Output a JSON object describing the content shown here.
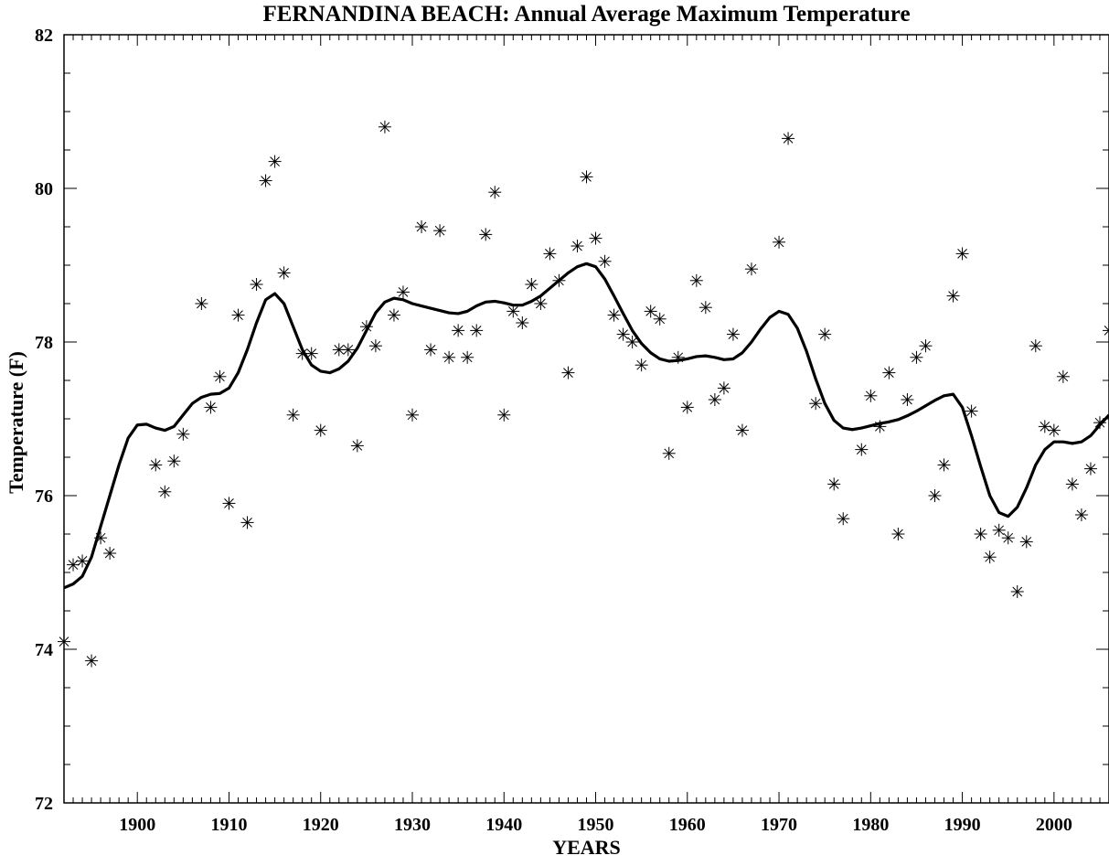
{
  "chart_data": {
    "type": "scatter",
    "title": "FERNANDINA BEACH: Annual Average Maximum Temperature",
    "xlabel": "YEARS",
    "ylabel": "Temperature (F)",
    "xlim": [
      1892,
      2006
    ],
    "ylim": [
      72,
      82
    ],
    "x_ticks": [
      "1900",
      "1910",
      "1920",
      "1930",
      "1940",
      "1950",
      "1960",
      "1970",
      "1980",
      "1990",
      "2000"
    ],
    "y_ticks": [
      "72",
      "74",
      "76",
      "78",
      "80",
      "82"
    ],
    "grid": false,
    "legend": "none",
    "series": [
      {
        "kind": "scatter",
        "marker": "asterisk",
        "color": "#000000",
        "points": [
          [
            1892,
            74.1
          ],
          [
            1893,
            75.1
          ],
          [
            1894,
            75.15
          ],
          [
            1895,
            73.85
          ],
          [
            1896,
            75.45
          ],
          [
            1897,
            75.25
          ],
          [
            1902,
            76.4
          ],
          [
            1903,
            76.05
          ],
          [
            1904,
            76.45
          ],
          [
            1905,
            76.8
          ],
          [
            1907,
            78.5
          ],
          [
            1908,
            77.15
          ],
          [
            1909,
            77.55
          ],
          [
            1910,
            75.9
          ],
          [
            1911,
            78.35
          ],
          [
            1912,
            75.65
          ],
          [
            1913,
            78.75
          ],
          [
            1914,
            80.1
          ],
          [
            1915,
            80.35
          ],
          [
            1916,
            78.9
          ],
          [
            1917,
            77.05
          ],
          [
            1918,
            77.85
          ],
          [
            1919,
            77.85
          ],
          [
            1920,
            76.85
          ],
          [
            1922,
            77.9
          ],
          [
            1923,
            77.9
          ],
          [
            1924,
            76.65
          ],
          [
            1925,
            78.2
          ],
          [
            1926,
            77.95
          ],
          [
            1927,
            80.8
          ],
          [
            1928,
            78.35
          ],
          [
            1929,
            78.65
          ],
          [
            1930,
            77.05
          ],
          [
            1931,
            79.5
          ],
          [
            1932,
            77.9
          ],
          [
            1933,
            79.45
          ],
          [
            1934,
            77.8
          ],
          [
            1935,
            78.15
          ],
          [
            1936,
            77.8
          ],
          [
            1937,
            78.15
          ],
          [
            1938,
            79.4
          ],
          [
            1939,
            79.95
          ],
          [
            1940,
            77.05
          ],
          [
            1941,
            78.4
          ],
          [
            1942,
            78.25
          ],
          [
            1943,
            78.75
          ],
          [
            1944,
            78.5
          ],
          [
            1945,
            79.15
          ],
          [
            1946,
            78.8
          ],
          [
            1947,
            77.6
          ],
          [
            1948,
            79.25
          ],
          [
            1949,
            80.15
          ],
          [
            1950,
            79.35
          ],
          [
            1951,
            79.05
          ],
          [
            1952,
            78.35
          ],
          [
            1953,
            78.1
          ],
          [
            1954,
            78.0
          ],
          [
            1955,
            77.7
          ],
          [
            1956,
            78.4
          ],
          [
            1957,
            78.3
          ],
          [
            1958,
            76.55
          ],
          [
            1959,
            77.8
          ],
          [
            1960,
            77.15
          ],
          [
            1961,
            78.8
          ],
          [
            1962,
            78.45
          ],
          [
            1963,
            77.25
          ],
          [
            1964,
            77.4
          ],
          [
            1965,
            78.1
          ],
          [
            1966,
            76.85
          ],
          [
            1967,
            78.95
          ],
          [
            1970,
            79.3
          ],
          [
            1971,
            80.65
          ],
          [
            1974,
            77.2
          ],
          [
            1975,
            78.1
          ],
          [
            1976,
            76.15
          ],
          [
            1977,
            75.7
          ],
          [
            1979,
            76.6
          ],
          [
            1980,
            77.3
          ],
          [
            1981,
            76.9
          ],
          [
            1982,
            77.6
          ],
          [
            1983,
            75.5
          ],
          [
            1984,
            77.25
          ],
          [
            1985,
            77.8
          ],
          [
            1986,
            77.95
          ],
          [
            1987,
            76.0
          ],
          [
            1988,
            76.4
          ],
          [
            1989,
            78.6
          ],
          [
            1990,
            79.15
          ],
          [
            1991,
            77.1
          ],
          [
            1992,
            75.5
          ],
          [
            1993,
            75.2
          ],
          [
            1994,
            75.55
          ],
          [
            1995,
            75.45
          ],
          [
            1996,
            74.75
          ],
          [
            1997,
            75.4
          ],
          [
            1998,
            77.95
          ],
          [
            1999,
            76.9
          ],
          [
            2000,
            76.85
          ],
          [
            2001,
            77.55
          ],
          [
            2002,
            76.15
          ],
          [
            2003,
            75.75
          ],
          [
            2004,
            76.35
          ],
          [
            2005,
            76.95
          ],
          [
            2006,
            78.15
          ]
        ]
      },
      {
        "kind": "line",
        "color": "#000000",
        "points": [
          [
            1892,
            74.8
          ],
          [
            1893,
            74.85
          ],
          [
            1894,
            74.95
          ],
          [
            1895,
            75.2
          ],
          [
            1896,
            75.6
          ],
          [
            1897,
            76.0
          ],
          [
            1898,
            76.4
          ],
          [
            1899,
            76.75
          ],
          [
            1900,
            76.92
          ],
          [
            1901,
            76.93
          ],
          [
            1902,
            76.88
          ],
          [
            1903,
            76.85
          ],
          [
            1904,
            76.9
          ],
          [
            1905,
            77.05
          ],
          [
            1906,
            77.2
          ],
          [
            1907,
            77.28
          ],
          [
            1908,
            77.32
          ],
          [
            1909,
            77.33
          ],
          [
            1910,
            77.4
          ],
          [
            1911,
            77.6
          ],
          [
            1912,
            77.9
          ],
          [
            1913,
            78.25
          ],
          [
            1914,
            78.55
          ],
          [
            1915,
            78.63
          ],
          [
            1916,
            78.5
          ],
          [
            1917,
            78.2
          ],
          [
            1918,
            77.9
          ],
          [
            1919,
            77.7
          ],
          [
            1920,
            77.62
          ],
          [
            1921,
            77.6
          ],
          [
            1922,
            77.65
          ],
          [
            1923,
            77.75
          ],
          [
            1924,
            77.92
          ],
          [
            1925,
            78.15
          ],
          [
            1926,
            78.38
          ],
          [
            1927,
            78.52
          ],
          [
            1928,
            78.57
          ],
          [
            1929,
            78.55
          ],
          [
            1930,
            78.5
          ],
          [
            1931,
            78.47
          ],
          [
            1932,
            78.44
          ],
          [
            1933,
            78.41
          ],
          [
            1934,
            78.38
          ],
          [
            1935,
            78.37
          ],
          [
            1936,
            78.4
          ],
          [
            1937,
            78.47
          ],
          [
            1938,
            78.52
          ],
          [
            1939,
            78.53
          ],
          [
            1940,
            78.51
          ],
          [
            1941,
            78.48
          ],
          [
            1942,
            78.48
          ],
          [
            1943,
            78.53
          ],
          [
            1944,
            78.6
          ],
          [
            1945,
            78.7
          ],
          [
            1946,
            78.8
          ],
          [
            1947,
            78.9
          ],
          [
            1948,
            78.98
          ],
          [
            1949,
            79.02
          ],
          [
            1950,
            78.98
          ],
          [
            1951,
            78.82
          ],
          [
            1952,
            78.6
          ],
          [
            1953,
            78.37
          ],
          [
            1954,
            78.15
          ],
          [
            1955,
            77.98
          ],
          [
            1956,
            77.86
          ],
          [
            1957,
            77.78
          ],
          [
            1958,
            77.75
          ],
          [
            1959,
            77.76
          ],
          [
            1960,
            77.78
          ],
          [
            1961,
            77.81
          ],
          [
            1962,
            77.82
          ],
          [
            1963,
            77.8
          ],
          [
            1964,
            77.77
          ],
          [
            1965,
            77.78
          ],
          [
            1966,
            77.86
          ],
          [
            1967,
            78.0
          ],
          [
            1968,
            78.17
          ],
          [
            1969,
            78.32
          ],
          [
            1970,
            78.4
          ],
          [
            1971,
            78.36
          ],
          [
            1972,
            78.18
          ],
          [
            1973,
            77.88
          ],
          [
            1974,
            77.52
          ],
          [
            1975,
            77.2
          ],
          [
            1976,
            76.98
          ],
          [
            1977,
            76.88
          ],
          [
            1978,
            76.86
          ],
          [
            1979,
            76.88
          ],
          [
            1980,
            76.91
          ],
          [
            1981,
            76.94
          ],
          [
            1982,
            76.96
          ],
          [
            1983,
            76.99
          ],
          [
            1984,
            77.04
          ],
          [
            1985,
            77.1
          ],
          [
            1986,
            77.17
          ],
          [
            1987,
            77.24
          ],
          [
            1988,
            77.3
          ],
          [
            1989,
            77.32
          ],
          [
            1990,
            77.15
          ],
          [
            1991,
            76.78
          ],
          [
            1992,
            76.38
          ],
          [
            1993,
            76.0
          ],
          [
            1994,
            75.78
          ],
          [
            1995,
            75.73
          ],
          [
            1996,
            75.85
          ],
          [
            1997,
            76.1
          ],
          [
            1998,
            76.4
          ],
          [
            1999,
            76.6
          ],
          [
            2000,
            76.7
          ],
          [
            2001,
            76.7
          ],
          [
            2002,
            76.68
          ],
          [
            2003,
            76.7
          ],
          [
            2004,
            76.78
          ],
          [
            2005,
            76.92
          ],
          [
            2006,
            77.05
          ]
        ]
      }
    ]
  }
}
